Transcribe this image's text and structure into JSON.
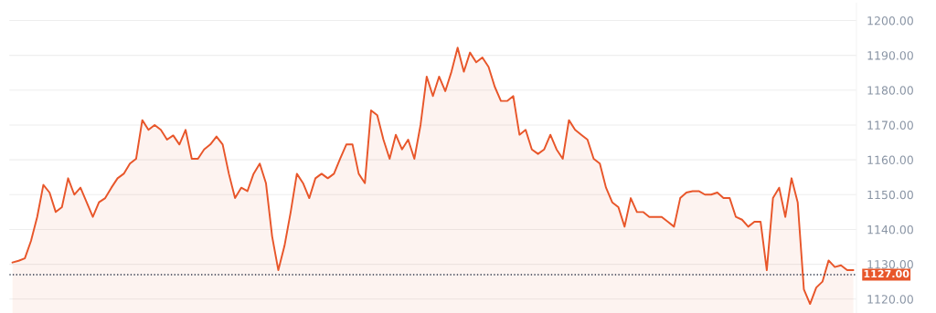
{
  "chart_data": {
    "type": "area",
    "categories": [
      null,
      null,
      null,
      null,
      null,
      null,
      null,
      null,
      null,
      null,
      null,
      null,
      null,
      null,
      null,
      null,
      null,
      null,
      null,
      null,
      null,
      null,
      null,
      null,
      null,
      null,
      null,
      null,
      null,
      null,
      null,
      null,
      null,
      null,
      null,
      null,
      null,
      null,
      null,
      null,
      null,
      null,
      null,
      null,
      null,
      null,
      null,
      null,
      null,
      null,
      null,
      null,
      null,
      null,
      null,
      null,
      null,
      null,
      null,
      null,
      null,
      null,
      null,
      null,
      null,
      null,
      null,
      null,
      null,
      null,
      null,
      null,
      null,
      null,
      null,
      null,
      null,
      null,
      null,
      null,
      null,
      null,
      null,
      null,
      null,
      null,
      null,
      null,
      null,
      null,
      null,
      null,
      null,
      null,
      null,
      null,
      null,
      null,
      null,
      null,
      null,
      null,
      null,
      null,
      null,
      null,
      null,
      null,
      null,
      null,
      null,
      null,
      null,
      null,
      null,
      null,
      null,
      null,
      null,
      null,
      null,
      null,
      null,
      null,
      null,
      null,
      null,
      null,
      null,
      null,
      null,
      null,
      null,
      null,
      null,
      null,
      null
    ],
    "series": [
      {
        "color": "#e8562a",
        "values": [
          1130.5,
          1131,
          1131.7,
          1136.7,
          1143.6,
          1152.8,
          1150.6,
          1145,
          1146.4,
          1154.7,
          1150,
          1152,
          1147.8,
          1143.6,
          1147.8,
          1149,
          1152,
          1154.7,
          1156,
          1158.9,
          1160.3,
          1171.4,
          1168.6,
          1170,
          1168.6,
          1165.8,
          1167,
          1164.4,
          1168.6,
          1160.3,
          1160.3,
          1163,
          1164.4,
          1166.7,
          1164.4,
          1156,
          1149,
          1152,
          1151,
          1156,
          1158.9,
          1153.3,
          1138,
          1128.3,
          1135.3,
          1145,
          1156,
          1153.3,
          1149,
          1154.7,
          1156,
          1154.7,
          1156,
          1160.3,
          1164.4,
          1164.4,
          1156,
          1153.3,
          1174.2,
          1172.8,
          1165.8,
          1160.3,
          1167.2,
          1163,
          1165.8,
          1160.3,
          1170,
          1183.9,
          1178.3,
          1183.9,
          1179.7,
          1185.3,
          1192.2,
          1185.3,
          1190.8,
          1188,
          1189.4,
          1186.7,
          1181,
          1176.9,
          1176.9,
          1178.3,
          1167.2,
          1168.6,
          1163,
          1161.7,
          1163,
          1167.2,
          1163,
          1160.3,
          1171.4,
          1168.6,
          1167.2,
          1165.8,
          1160.3,
          1158.9,
          1152,
          1147.8,
          1146.4,
          1140.8,
          1149,
          1145,
          1145,
          1143.6,
          1143.6,
          1143.6,
          1142.2,
          1140.8,
          1149,
          1150.6,
          1151,
          1151,
          1150,
          1150,
          1150.6,
          1149,
          1149,
          1143.6,
          1142.8,
          1140.8,
          1142.2,
          1142.2,
          1128.3,
          1149,
          1152,
          1143.6,
          1154.7,
          1147.8,
          1122.8,
          1118.6,
          1123.3,
          1125,
          1131.1,
          1129.2,
          1129.7,
          1128.3,
          1128.3
        ]
      }
    ],
    "ylim": [
      1116,
      1205
    ],
    "yticks": [
      {
        "value": 1120,
        "label": "1120.00"
      },
      {
        "value": 1130,
        "label": "1130.00"
      },
      {
        "value": 1140,
        "label": "1140.00"
      },
      {
        "value": 1150,
        "label": "1150.00"
      },
      {
        "value": 1160,
        "label": "1160.00"
      },
      {
        "value": 1170,
        "label": "1170.00"
      },
      {
        "value": 1180,
        "label": "1180.00"
      },
      {
        "value": 1190,
        "label": "1190.00"
      },
      {
        "value": 1200,
        "label": "1200.00"
      }
    ],
    "ref_lines": [
      {
        "axis": "y",
        "value": 1127,
        "label": "1127.00",
        "color": "#333a4d",
        "line_style": "dotted"
      }
    ],
    "grid": "y",
    "tick_labels": "y",
    "legend": false
  }
}
